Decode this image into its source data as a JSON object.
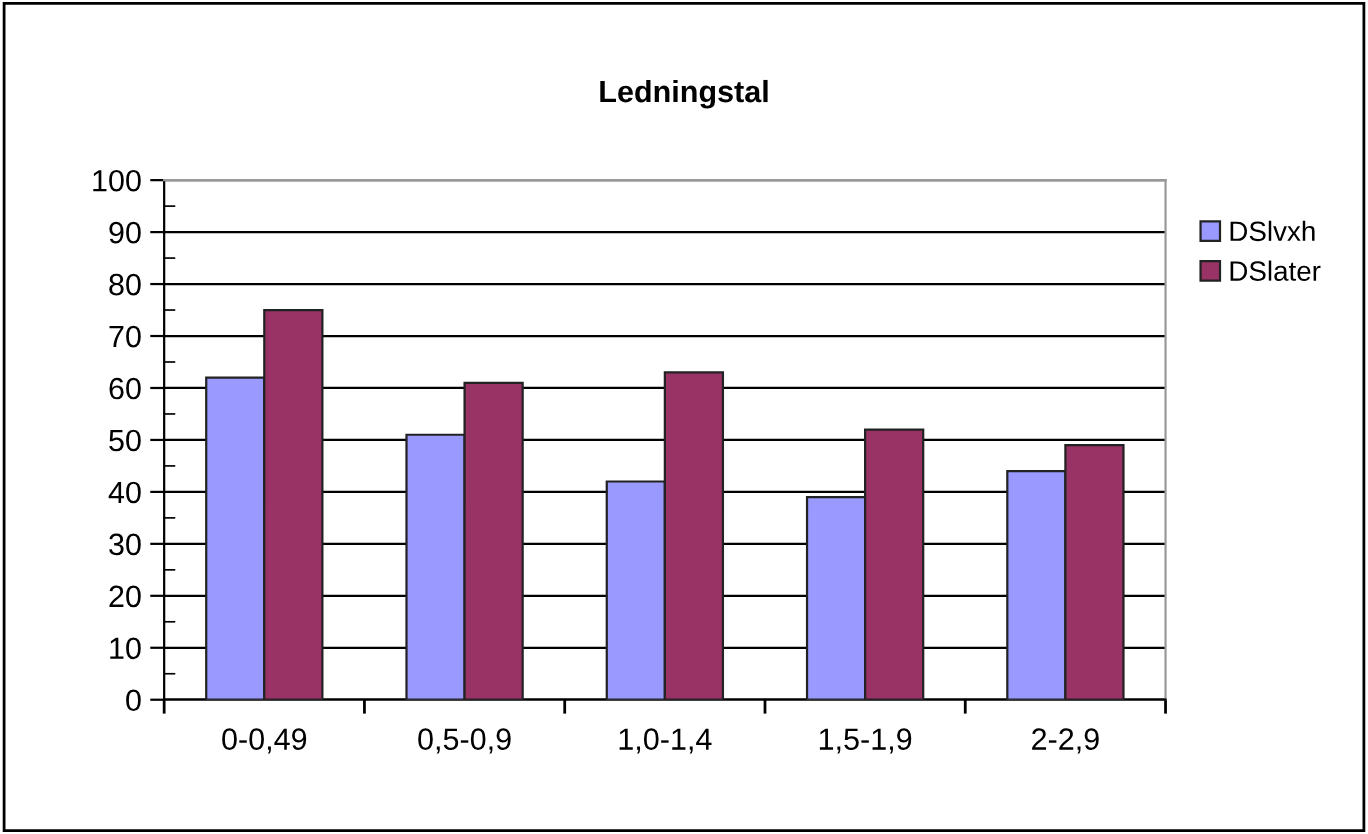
{
  "chart_data": {
    "type": "bar",
    "title": "Ledningstal",
    "categories": [
      "0-0,49",
      "0,5-0,9",
      "1,0-1,4",
      "1,5-1,9",
      "2-2,9"
    ],
    "series": [
      {
        "name": "DSlvxh",
        "color": "#9999ff",
        "values": [
          62,
          51,
          42,
          39,
          44
        ]
      },
      {
        "name": "DSlater",
        "color": "#993366",
        "values": [
          75,
          61,
          63,
          52,
          49
        ]
      }
    ],
    "ylim": [
      0,
      100
    ],
    "yticks": [
      0,
      10,
      20,
      30,
      40,
      50,
      60,
      70,
      80,
      90,
      100
    ],
    "grid": "y",
    "legend": "right"
  }
}
